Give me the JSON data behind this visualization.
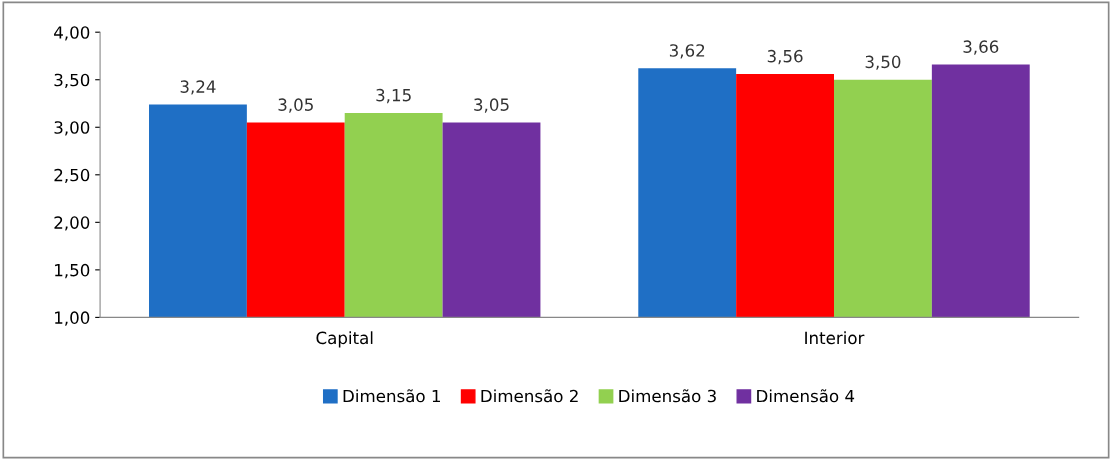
{
  "chart_data": {
    "type": "bar",
    "categories": [
      "Capital",
      "Interior"
    ],
    "series": [
      {
        "name": "Dimensão 1",
        "color": "#1f6fc5",
        "values": [
          3.24,
          3.62
        ],
        "value_labels": [
          "3,24",
          "3,62"
        ]
      },
      {
        "name": "Dimensão 2",
        "color": "#ff0000",
        "values": [
          3.05,
          3.56
        ],
        "value_labels": [
          "3,05",
          "3,56"
        ]
      },
      {
        "name": "Dimensão 3",
        "color": "#92d050",
        "values": [
          3.15,
          3.5
        ],
        "value_labels": [
          "3,15",
          "3,50"
        ]
      },
      {
        "name": "Dimensão 4",
        "color": "#7030a0",
        "values": [
          3.05,
          3.66
        ],
        "value_labels": [
          "3,05",
          "3,66"
        ]
      }
    ],
    "ylim": [
      1,
      4
    ],
    "yticks": [
      {
        "value": 1,
        "label": "1,00"
      },
      {
        "value": 1.5,
        "label": "1,50"
      },
      {
        "value": 2,
        "label": "2,00"
      },
      {
        "value": 2.5,
        "label": "2,50"
      },
      {
        "value": 3,
        "label": "3,00"
      },
      {
        "value": 3.5,
        "label": "3,50"
      },
      {
        "value": 4,
        "label": "4,00"
      }
    ],
    "grid": false,
    "legend": "bottom"
  }
}
